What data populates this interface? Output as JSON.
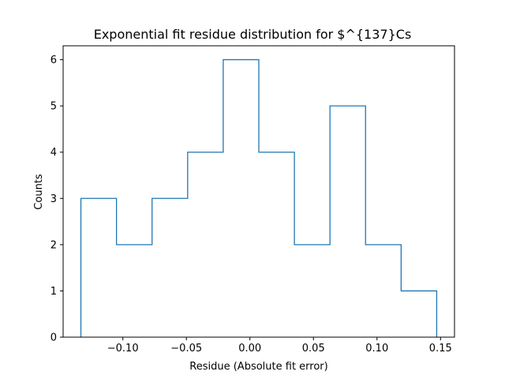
{
  "chart_data": {
    "type": "histogram",
    "title": "Exponential fit residue distribution for $^{137}Cs",
    "xlabel": "Residue (Absolute fit error)",
    "ylabel": "Counts",
    "xlim": [
      -0.147,
      0.161
    ],
    "ylim": [
      0,
      6.3
    ],
    "xticks": [
      -0.1,
      -0.05,
      0.0,
      0.05,
      0.1,
      0.15
    ],
    "xtick_labels": [
      "−0.10",
      "−0.05",
      "0.00",
      "0.05",
      "0.10",
      "0.15"
    ],
    "yticks": [
      0,
      1,
      2,
      3,
      4,
      5,
      6
    ],
    "ytick_labels": [
      "0",
      "1",
      "2",
      "3",
      "4",
      "5",
      "6"
    ],
    "bin_edges": [
      -0.133,
      -0.105,
      -0.077,
      -0.049,
      -0.021,
      0.007,
      0.035,
      0.063,
      0.091,
      0.119,
      0.147
    ],
    "counts": [
      3,
      2,
      3,
      4,
      6,
      4,
      2,
      5,
      2,
      1
    ],
    "grid": false,
    "histtype": "step",
    "color": "#1f77b4"
  }
}
